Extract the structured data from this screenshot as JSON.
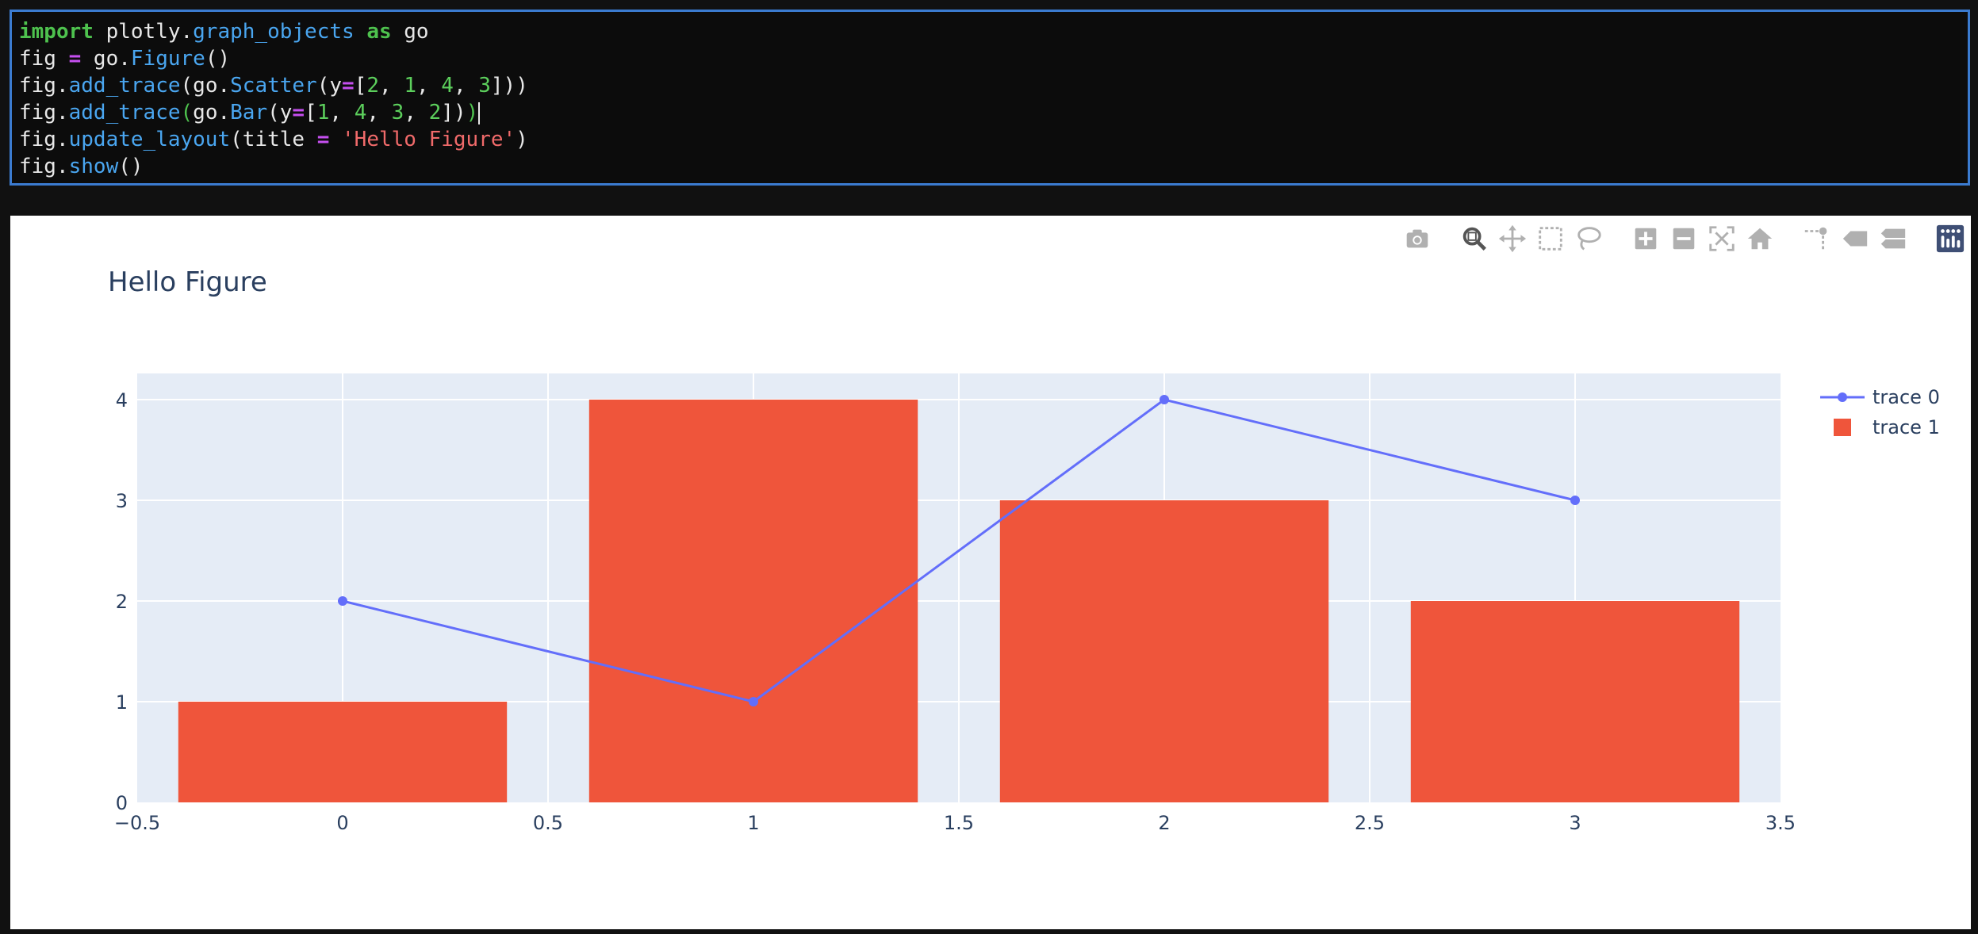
{
  "code_cell": {
    "lines": [
      [
        {
          "t": "import",
          "c": "kw"
        },
        {
          "t": " plotly."
        },
        {
          "t": "graph_objects",
          "c": "fn"
        },
        {
          "t": " "
        },
        {
          "t": "as",
          "c": "kw"
        },
        {
          "t": " go"
        }
      ],
      [
        {
          "t": "fig "
        },
        {
          "t": "=",
          "c": "op"
        },
        {
          "t": " go."
        },
        {
          "t": "Figure",
          "c": "fn"
        },
        {
          "t": "()"
        }
      ],
      [
        {
          "t": "fig."
        },
        {
          "t": "add_trace",
          "c": "fn"
        },
        {
          "t": "(go."
        },
        {
          "t": "Scatter",
          "c": "fn"
        },
        {
          "t": "(y"
        },
        {
          "t": "=",
          "c": "op"
        },
        {
          "t": "["
        },
        {
          "t": "2",
          "c": "num"
        },
        {
          "t": ", "
        },
        {
          "t": "1",
          "c": "num"
        },
        {
          "t": ", "
        },
        {
          "t": "4",
          "c": "num"
        },
        {
          "t": ", "
        },
        {
          "t": "3",
          "c": "num"
        },
        {
          "t": "]))"
        }
      ],
      [
        {
          "t": "fig."
        },
        {
          "t": "add_trace",
          "c": "fn"
        },
        {
          "t": "(",
          "c": "br"
        },
        {
          "t": "go."
        },
        {
          "t": "Bar",
          "c": "fn"
        },
        {
          "t": "(y"
        },
        {
          "t": "=",
          "c": "op"
        },
        {
          "t": "["
        },
        {
          "t": "1",
          "c": "num"
        },
        {
          "t": ", "
        },
        {
          "t": "4",
          "c": "num"
        },
        {
          "t": ", "
        },
        {
          "t": "3",
          "c": "num"
        },
        {
          "t": ", "
        },
        {
          "t": "2",
          "c": "num"
        },
        {
          "t": "])"
        },
        {
          "t": ")",
          "c": "br"
        }
      ],
      [
        {
          "t": "fig."
        },
        {
          "t": "update_layout",
          "c": "fn"
        },
        {
          "t": "(title "
        },
        {
          "t": "=",
          "c": "op"
        },
        {
          "t": " "
        },
        {
          "t": "'Hello Figure'",
          "c": "str"
        },
        {
          "t": ")"
        }
      ],
      [
        {
          "t": "fig."
        },
        {
          "t": "show",
          "c": "fn"
        },
        {
          "t": "()"
        }
      ]
    ],
    "cursor_line": 3
  },
  "modebar": {
    "buttons": [
      {
        "name": "camera-icon",
        "group": 0
      },
      {
        "name": "zoom-icon",
        "group": 1,
        "active": true
      },
      {
        "name": "pan-icon",
        "group": 1
      },
      {
        "name": "box-select-icon",
        "group": 1
      },
      {
        "name": "lasso-select-icon",
        "group": 1
      },
      {
        "name": "zoom-in-icon",
        "group": 2
      },
      {
        "name": "zoom-out-icon",
        "group": 2
      },
      {
        "name": "autoscale-icon",
        "group": 2
      },
      {
        "name": "reset-axes-icon",
        "group": 2
      },
      {
        "name": "spike-lines-icon",
        "group": 3
      },
      {
        "name": "hover-closest-icon",
        "group": 3
      },
      {
        "name": "hover-compare-icon",
        "group": 3
      },
      {
        "name": "plotly-logo-icon",
        "group": 4
      }
    ]
  },
  "colors": {
    "scatter": "#636efa",
    "bar": "#ef553b",
    "plot_bg": "#e5ecf6",
    "text": "#2a3f5f"
  },
  "chart_data": {
    "type": "bar",
    "title": "Hello Figure",
    "x_ticks": [
      "−0.5",
      "0",
      "0.5",
      "1",
      "1.5",
      "2",
      "2.5",
      "3",
      "3.5"
    ],
    "x_tick_values": [
      -0.5,
      0,
      0.5,
      1,
      1.5,
      2,
      2.5,
      3,
      3.5
    ],
    "y_ticks": [
      "0",
      "1",
      "2",
      "3",
      "4"
    ],
    "y_tick_values": [
      0,
      1,
      2,
      3,
      4
    ],
    "xlim": [
      -0.5,
      3.5
    ],
    "ylim": [
      0,
      4.26
    ],
    "grid": true,
    "legend_position": "top-right",
    "series": [
      {
        "name": "trace 0",
        "type": "line",
        "x": [
          0,
          1,
          2,
          3
        ],
        "values": [
          2,
          1,
          4,
          3
        ]
      },
      {
        "name": "trace 1",
        "type": "bar",
        "x": [
          0,
          1,
          2,
          3
        ],
        "values": [
          1,
          4,
          3,
          2
        ]
      }
    ]
  }
}
